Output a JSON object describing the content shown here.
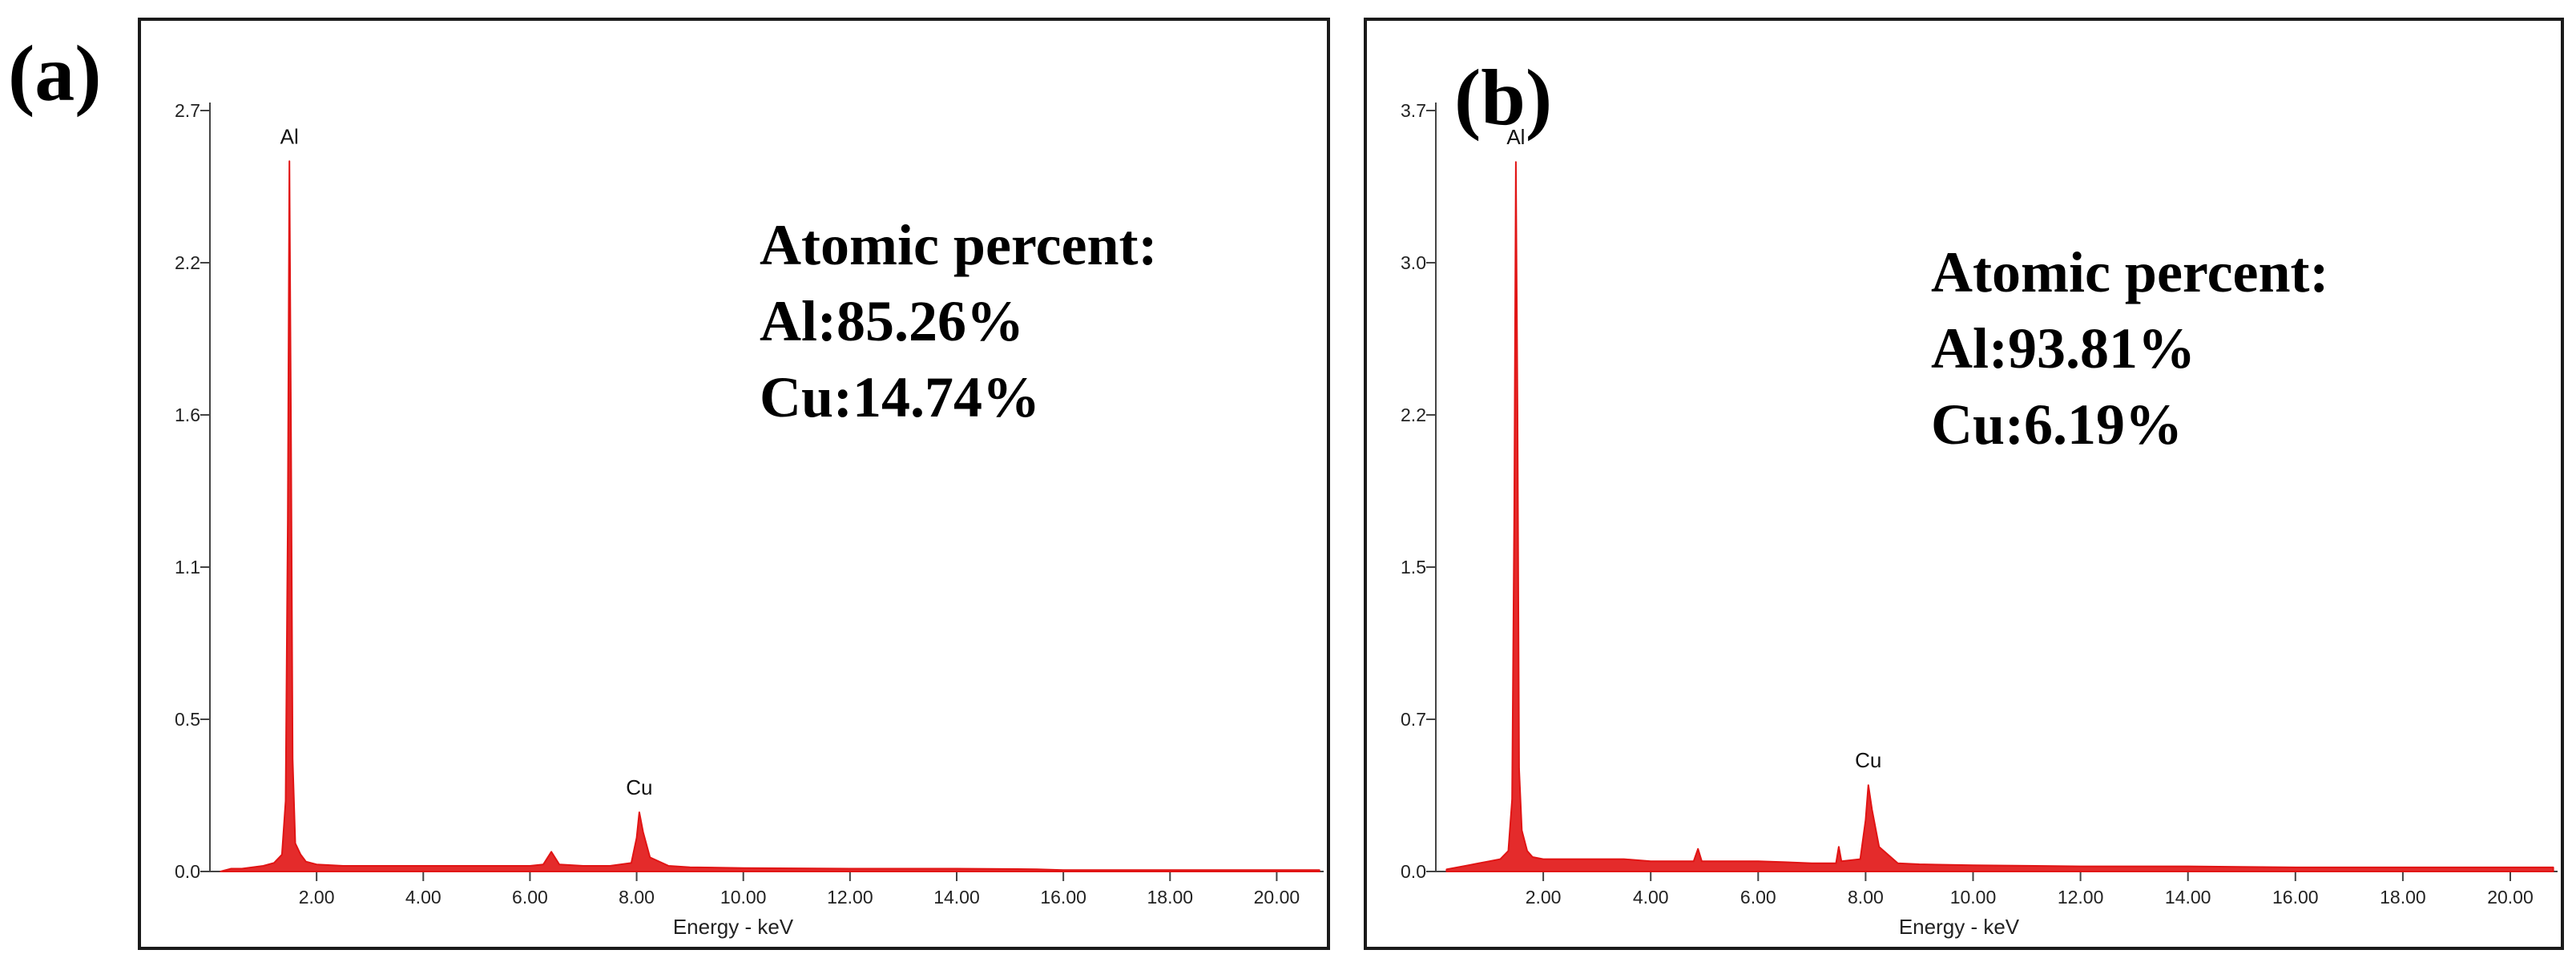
{
  "colors": {
    "spectrum": "#e11414",
    "frame": "#1a1a1a",
    "axis": "#444444"
  },
  "chart_data": [
    {
      "type": "line",
      "panel_label": "(a)",
      "xlabel": "Energy - keV",
      "ylabel": "",
      "xlim": [
        0,
        20.88
      ],
      "ylim": [
        0,
        2.7
      ],
      "x_ticks": [
        "2.00",
        "4.00",
        "6.00",
        "8.00",
        "10.00",
        "12.00",
        "14.00",
        "16.00",
        "18.00",
        "20.00"
      ],
      "y_ticks": [
        "0.0",
        "0.5",
        "1.1",
        "1.6",
        "2.2",
        "2.7"
      ],
      "peak_labels": [
        {
          "text": "Al",
          "x": 1.49,
          "y": 2.52
        },
        {
          "text": "Cu",
          "x": 8.05,
          "y": 0.21
        }
      ],
      "annotation": [
        "Atomic percent:",
        "Al:85.26%",
        "Cu:14.74%"
      ],
      "series": [
        {
          "points": [
            [
              0.2,
              0.0
            ],
            [
              0.4,
              0.01
            ],
            [
              0.6,
              0.01
            ],
            [
              0.8,
              0.015
            ],
            [
              1.0,
              0.02
            ],
            [
              1.2,
              0.03
            ],
            [
              1.35,
              0.06
            ],
            [
              1.42,
              0.25
            ],
            [
              1.46,
              1.25
            ],
            [
              1.49,
              2.52
            ],
            [
              1.52,
              1.55
            ],
            [
              1.55,
              0.4
            ],
            [
              1.6,
              0.1
            ],
            [
              1.7,
              0.06
            ],
            [
              1.8,
              0.035
            ],
            [
              2.0,
              0.025
            ],
            [
              2.5,
              0.02
            ],
            [
              3.0,
              0.02
            ],
            [
              3.5,
              0.02
            ],
            [
              4.0,
              0.02
            ],
            [
              4.5,
              0.02
            ],
            [
              5.0,
              0.02
            ],
            [
              5.5,
              0.02
            ],
            [
              6.0,
              0.02
            ],
            [
              6.25,
              0.025
            ],
            [
              6.4,
              0.07
            ],
            [
              6.55,
              0.025
            ],
            [
              7.0,
              0.02
            ],
            [
              7.5,
              0.02
            ],
            [
              7.9,
              0.03
            ],
            [
              8.0,
              0.12
            ],
            [
              8.05,
              0.21
            ],
            [
              8.12,
              0.14
            ],
            [
              8.25,
              0.05
            ],
            [
              8.6,
              0.02
            ],
            [
              9.0,
              0.015
            ],
            [
              10.0,
              0.012
            ],
            [
              12.0,
              0.01
            ],
            [
              14.0,
              0.01
            ],
            [
              15.5,
              0.008
            ],
            [
              16.0,
              0.005
            ],
            [
              18.0,
              0.005
            ],
            [
              20.0,
              0.005
            ],
            [
              20.8,
              0.005
            ]
          ]
        }
      ]
    },
    {
      "type": "line",
      "panel_label": "(b)",
      "xlabel": "Energy - keV",
      "ylabel": "",
      "xlim": [
        0,
        20.88
      ],
      "ylim": [
        0,
        3.7
      ],
      "x_ticks": [
        "2.00",
        "4.00",
        "6.00",
        "8.00",
        "10.00",
        "12.00",
        "14.00",
        "16.00",
        "18.00",
        "20.00"
      ],
      "y_ticks": [
        "0.0",
        "0.7",
        "1.5",
        "2.2",
        "3.0",
        "3.7"
      ],
      "peak_labels": [
        {
          "text": "Al",
          "x": 1.49,
          "y": 3.45
        },
        {
          "text": "Cu",
          "x": 8.05,
          "y": 0.42
        }
      ],
      "annotation": [
        "Atomic percent:",
        "Al:93.81%",
        "Cu:6.19%"
      ],
      "series": [
        {
          "points": [
            [
              0.2,
              0.01
            ],
            [
              0.4,
              0.02
            ],
            [
              0.6,
              0.03
            ],
            [
              0.8,
              0.04
            ],
            [
              1.0,
              0.05
            ],
            [
              1.2,
              0.06
            ],
            [
              1.35,
              0.1
            ],
            [
              1.42,
              0.35
            ],
            [
              1.46,
              1.75
            ],
            [
              1.49,
              3.45
            ],
            [
              1.52,
              2.25
            ],
            [
              1.55,
              0.5
            ],
            [
              1.6,
              0.2
            ],
            [
              1.7,
              0.1
            ],
            [
              1.8,
              0.07
            ],
            [
              2.0,
              0.06
            ],
            [
              2.5,
              0.06
            ],
            [
              3.0,
              0.06
            ],
            [
              3.5,
              0.06
            ],
            [
              4.0,
              0.05
            ],
            [
              4.5,
              0.05
            ],
            [
              4.8,
              0.05
            ],
            [
              4.88,
              0.11
            ],
            [
              4.95,
              0.05
            ],
            [
              5.5,
              0.05
            ],
            [
              6.0,
              0.05
            ],
            [
              6.5,
              0.045
            ],
            [
              7.0,
              0.04
            ],
            [
              7.45,
              0.04
            ],
            [
              7.5,
              0.12
            ],
            [
              7.55,
              0.05
            ],
            [
              7.9,
              0.06
            ],
            [
              8.0,
              0.25
            ],
            [
              8.05,
              0.42
            ],
            [
              8.12,
              0.3
            ],
            [
              8.25,
              0.12
            ],
            [
              8.6,
              0.04
            ],
            [
              9.0,
              0.035
            ],
            [
              10.0,
              0.03
            ],
            [
              12.0,
              0.025
            ],
            [
              14.0,
              0.025
            ],
            [
              16.0,
              0.02
            ],
            [
              18.0,
              0.02
            ],
            [
              20.0,
              0.02
            ],
            [
              20.8,
              0.02
            ]
          ]
        }
      ]
    }
  ]
}
